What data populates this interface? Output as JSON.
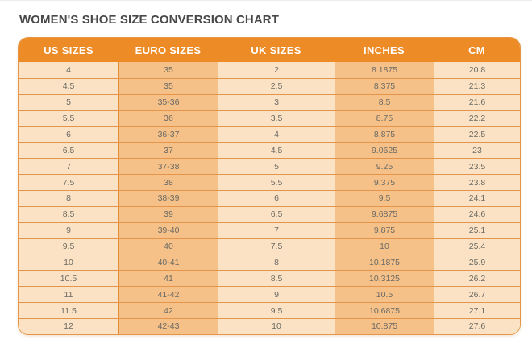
{
  "title": "WOMEN'S SHOE SIZE CONVERSION CHART",
  "colors": {
    "header_bg": "#ed8b26",
    "header_text": "#ffffff",
    "column_light_bg": "#fbe2c4",
    "column_dark_bg": "#f5c189",
    "grid_line": "#e2954b",
    "cell_text": "#6b6a64",
    "title_text": "#48484a"
  },
  "chart_data": {
    "type": "table",
    "title": "WOMEN'S SHOE SIZE CONVERSION CHART",
    "columns": [
      "US SIZES",
      "EURO SIZES",
      "UK SIZES",
      "INCHES",
      "CM"
    ],
    "rows": [
      [
        "4",
        "35",
        "2",
        "8.1875",
        "20.8"
      ],
      [
        "4.5",
        "35",
        "2.5",
        "8.375",
        "21.3"
      ],
      [
        "5",
        "35-36",
        "3",
        "8.5",
        "21.6"
      ],
      [
        "5.5",
        "36",
        "3.5",
        "8.75",
        "22.2"
      ],
      [
        "6",
        "36-37",
        "4",
        "8.875",
        "22.5"
      ],
      [
        "6.5",
        "37",
        "4.5",
        "9.0625",
        "23"
      ],
      [
        "7",
        "37-38",
        "5",
        "9.25",
        "23.5"
      ],
      [
        "7.5",
        "38",
        "5.5",
        "9.375",
        "23.8"
      ],
      [
        "8",
        "38-39",
        "6",
        "9.5",
        "24.1"
      ],
      [
        "8.5",
        "39",
        "6.5",
        "9.6875",
        "24.6"
      ],
      [
        "9",
        "39-40",
        "7",
        "9.875",
        "25.1"
      ],
      [
        "9.5",
        "40",
        "7.5",
        "10",
        "25.4"
      ],
      [
        "10",
        "40-41",
        "8",
        "10.1875",
        "25.9"
      ],
      [
        "10.5",
        "41",
        "8.5",
        "10.3125",
        "26.2"
      ],
      [
        "11",
        "41-42",
        "9",
        "10.5",
        "26.7"
      ],
      [
        "11.5",
        "42",
        "9.5",
        "10.6875",
        "27.1"
      ],
      [
        "12",
        "42-43",
        "10",
        "10.875",
        "27.6"
      ]
    ]
  }
}
